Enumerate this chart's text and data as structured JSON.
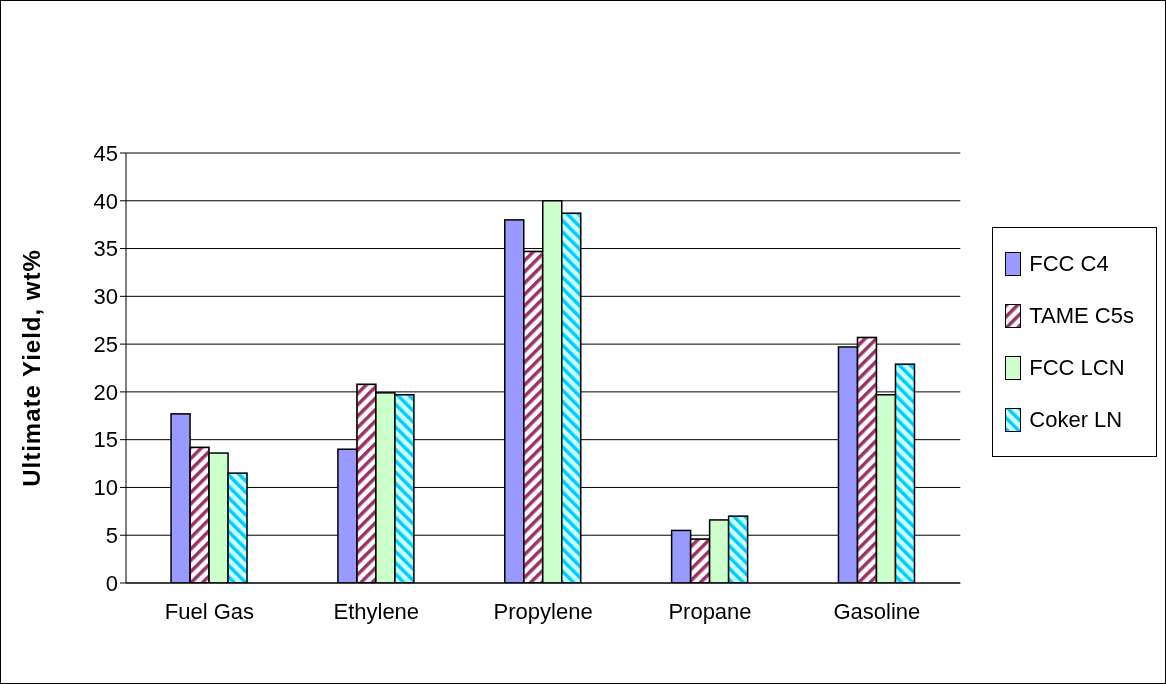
{
  "chart_data": {
    "type": "bar",
    "ylabel": "Ultimate Yield, wt%",
    "categories": [
      "Fuel Gas",
      "Ethylene",
      "Propylene",
      "Propane",
      "Gasoline"
    ],
    "series": [
      {
        "name": "FCC C4",
        "color": "#9999ff",
        "values": [
          17.7,
          14.0,
          38.0,
          5.5,
          24.7
        ]
      },
      {
        "name": "TAME C5s",
        "color": "#993366",
        "values": [
          14.2,
          20.8,
          34.7,
          4.6,
          25.7
        ]
      },
      {
        "name": "FCC LCN",
        "color": "#ccffcc",
        "values": [
          13.6,
          19.9,
          40.0,
          6.6,
          19.7
        ]
      },
      {
        "name": "Coker LN",
        "color": "#00ccff",
        "values": [
          11.5,
          19.7,
          38.7,
          7.0,
          22.9
        ]
      }
    ],
    "ylim": [
      0,
      45
    ],
    "yticks": [
      0,
      5,
      10,
      15,
      20,
      25,
      30,
      35,
      40,
      45
    ],
    "grid": "y",
    "legend": "right"
  }
}
